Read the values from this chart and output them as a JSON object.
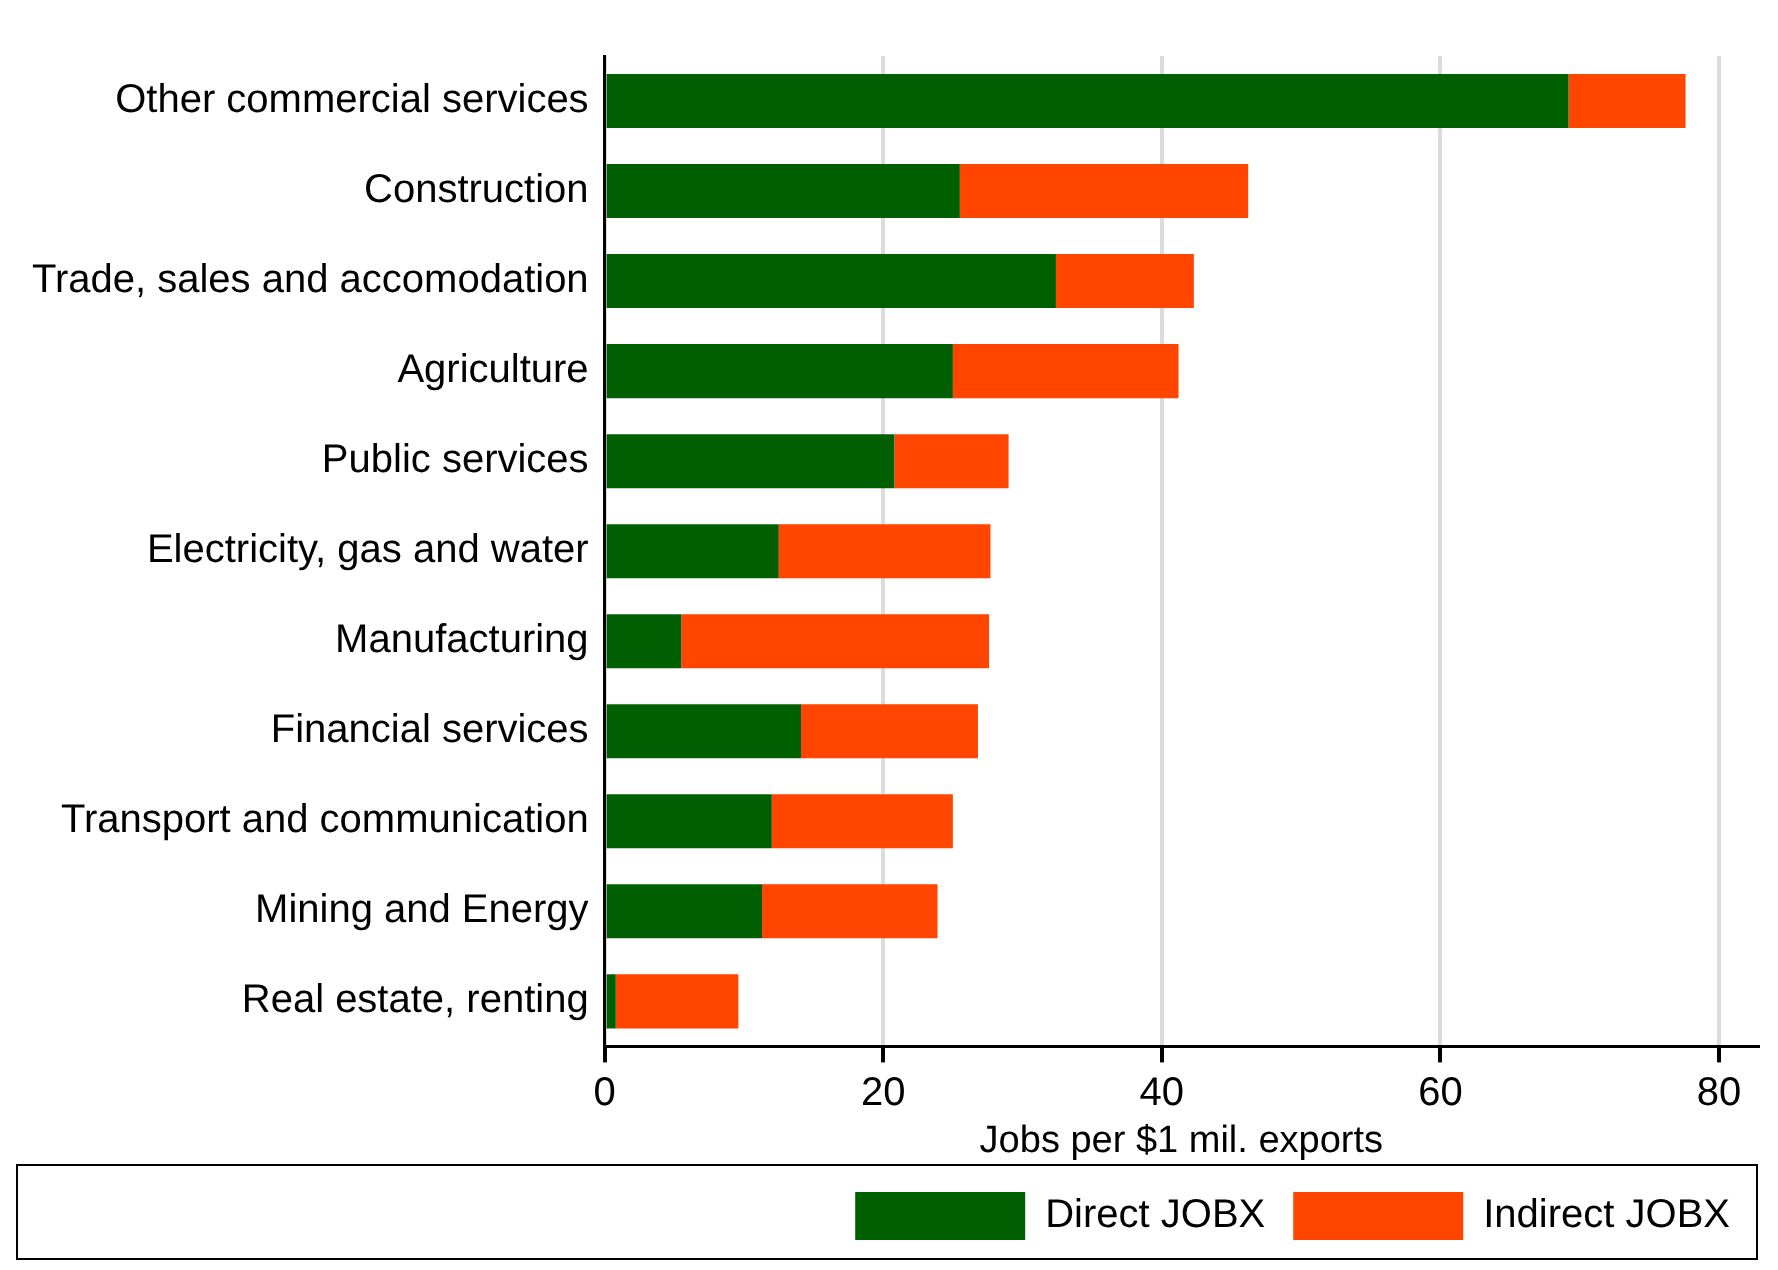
{
  "chart_data": {
    "type": "bar",
    "orientation": "horizontal",
    "stacked": true,
    "categories": [
      "Other commercial services",
      "Construction",
      "Trade, sales and accomodation",
      "Agriculture",
      "Public services",
      "Electricity, gas and water",
      "Manufacturing",
      "Financial services",
      "Transport and communication",
      "Mining and Energy",
      "Real estate, renting"
    ],
    "series": [
      {
        "name": "Direct JOBX",
        "color": "#005f00",
        "values": [
          69.2,
          25.5,
          32.4,
          25.0,
          20.8,
          12.5,
          5.5,
          14.1,
          12.0,
          11.3,
          0.8
        ]
      },
      {
        "name": "Indirect JOBX",
        "color": "#ff4500",
        "values": [
          8.4,
          20.7,
          9.9,
          16.2,
          8.2,
          15.2,
          22.1,
          12.7,
          13.0,
          12.6,
          8.8
        ]
      }
    ],
    "xlabel": "Jobs per $1 mil. exports",
    "xlim": [
      0,
      82.8
    ],
    "xticks": [
      0,
      20,
      40,
      60,
      80
    ],
    "grid": "x",
    "legend": "bottom"
  }
}
